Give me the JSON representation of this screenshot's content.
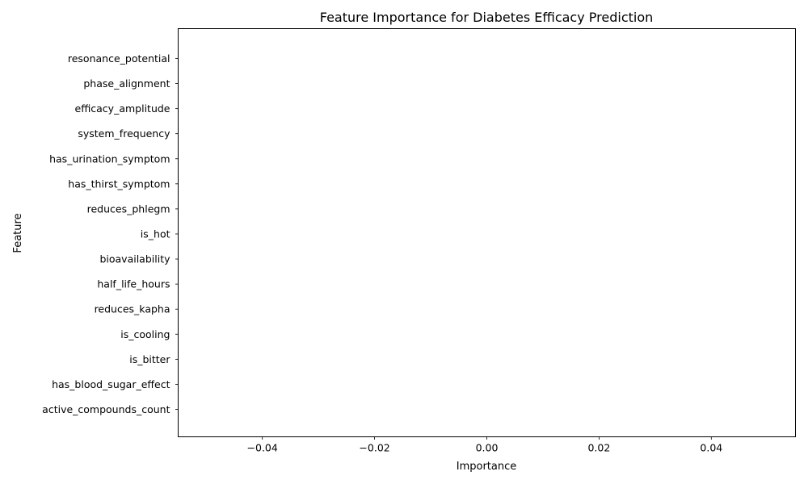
{
  "chart_data": {
    "type": "bar",
    "orientation": "horizontal",
    "title": "Feature Importance for Diabetes Efficacy Prediction",
    "xlabel": "Importance",
    "ylabel": "Feature",
    "categories": [
      "active_compounds_count",
      "has_blood_sugar_effect",
      "is_bitter",
      "is_cooling",
      "reduces_kapha",
      "half_life_hours",
      "bioavailability",
      "is_hot",
      "reduces_phlegm",
      "has_thirst_symptom",
      "has_urination_symptom",
      "system_frequency",
      "efficacy_amplitude",
      "phase_alignment",
      "resonance_potential"
    ],
    "values": [
      0,
      0,
      0,
      0,
      0,
      0,
      0,
      0,
      0,
      0,
      0,
      0,
      0,
      0,
      0
    ],
    "xlim": [
      -0.055,
      0.055
    ],
    "xticks": [
      -0.04,
      -0.02,
      0.0,
      0.02,
      0.04
    ],
    "xtick_labels": [
      "−0.04",
      "−0.02",
      "0.00",
      "0.02",
      "0.04"
    ],
    "grid": false,
    "bar_color": "#1f77b4"
  }
}
